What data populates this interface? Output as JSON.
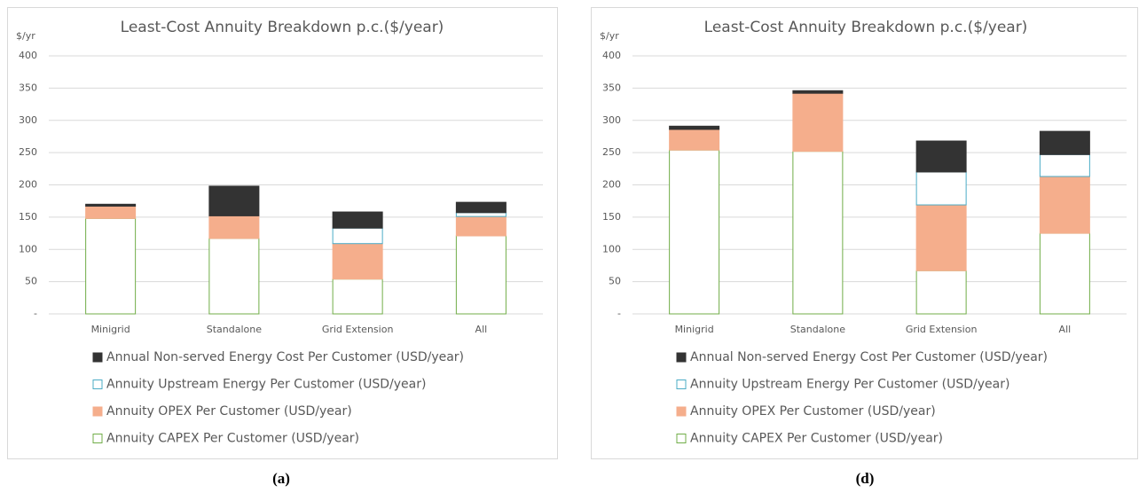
{
  "chart_data": [
    {
      "type": "stacked_bar",
      "title": "Least-Cost Annuity Breakdown p.c.($/year)",
      "y_label": "$/yr",
      "caption": "(a)",
      "categories": [
        "Minigrid",
        "Standalone",
        "Grid Extension",
        "All"
      ],
      "series": [
        {
          "name": "Annuity CAPEX Per Customer (USD/year)",
          "color": "#70ad47",
          "style": "outline",
          "values": [
            148,
            117,
            54,
            121
          ]
        },
        {
          "name": "Annuity OPEX Per Customer (USD/year)",
          "color": "#f5ae8c",
          "style": "solid",
          "values": [
            19,
            35,
            55,
            30
          ]
        },
        {
          "name": "Annuity Upstream Energy Per Customer (USD/year)",
          "color": "#4bacc6",
          "style": "outline",
          "values": [
            0,
            0,
            24,
            6
          ]
        },
        {
          "name": "Annual Non-served Energy Cost Per Customer (USD/year)",
          "color": "#333333",
          "style": "solid",
          "values": [
            3,
            46,
            25,
            16
          ]
        }
      ],
      "ylim": [
        0,
        400
      ],
      "yticks": [
        {
          "value": 0,
          "label": "-"
        },
        50,
        100,
        150,
        200,
        250,
        300,
        350,
        400
      ],
      "grid": true
    },
    {
      "type": "stacked_bar",
      "title": "Least-Cost Annuity Breakdown p.c.($/year)",
      "y_label": "$/yr",
      "caption": "(d)",
      "categories": [
        "Minigrid",
        "Standalone",
        "Grid Extension",
        "All"
      ],
      "series": [
        {
          "name": "Annuity CAPEX Per Customer (USD/year)",
          "color": "#70ad47",
          "style": "outline",
          "values": [
            254,
            252,
            67,
            125
          ]
        },
        {
          "name": "Annuity OPEX Per Customer (USD/year)",
          "color": "#f5ae8c",
          "style": "solid",
          "values": [
            32,
            90,
            102,
            88
          ]
        },
        {
          "name": "Annuity Upstream Energy Per Customer (USD/year)",
          "color": "#4bacc6",
          "style": "outline",
          "values": [
            0,
            0,
            51,
            34
          ]
        },
        {
          "name": "Annual Non-served Energy Cost Per Customer (USD/year)",
          "color": "#333333",
          "style": "solid",
          "values": [
            5,
            4,
            48,
            36
          ]
        }
      ],
      "ylim": [
        0,
        400
      ],
      "yticks": [
        {
          "value": 0,
          "label": "-"
        },
        50,
        100,
        150,
        200,
        250,
        300,
        350,
        400
      ],
      "grid": true
    }
  ]
}
